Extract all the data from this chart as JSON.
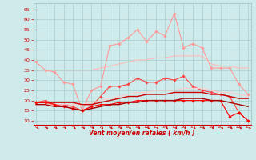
{
  "x": [
    0,
    1,
    2,
    3,
    4,
    5,
    6,
    7,
    8,
    9,
    10,
    11,
    12,
    13,
    14,
    15,
    16,
    17,
    18,
    19,
    20,
    21,
    22,
    23
  ],
  "series": [
    {
      "name": "rafales_max",
      "color": "#ff9999",
      "lw": 0.8,
      "marker": "D",
      "ms": 1.8,
      "values": [
        39,
        35,
        34,
        29,
        28,
        15,
        25,
        27,
        47,
        48,
        51,
        55,
        49,
        54,
        52,
        63,
        46,
        48,
        46,
        36,
        36,
        36,
        28,
        23
      ]
    },
    {
      "name": "rafales_moy",
      "color": "#ffbbbb",
      "lw": 0.8,
      "marker": null,
      "ms": 0,
      "values": [
        35,
        35,
        35,
        35,
        35,
        35,
        35,
        36,
        37,
        38,
        39,
        40,
        40,
        41,
        41,
        42,
        42,
        42,
        42,
        38,
        37,
        37,
        36,
        36
      ]
    },
    {
      "name": "vent_moyen_max",
      "color": "#ff4444",
      "lw": 0.8,
      "marker": "D",
      "ms": 1.8,
      "values": [
        19,
        20,
        18,
        18,
        17,
        15,
        17,
        22,
        27,
        27,
        28,
        31,
        29,
        29,
        31,
        30,
        32,
        27,
        25,
        24,
        23,
        22,
        14,
        10
      ]
    },
    {
      "name": "vent_moy_trend",
      "color": "#ffcccc",
      "lw": 0.8,
      "marker": null,
      "ms": 0,
      "values": [
        18,
        18,
        18,
        18,
        18,
        18,
        19,
        20,
        21,
        22,
        23,
        24,
        24,
        25,
        25,
        25,
        26,
        26,
        26,
        25,
        24,
        24,
        23,
        22
      ]
    },
    {
      "name": "vent_mean_upper",
      "color": "#cc0000",
      "lw": 1.0,
      "marker": null,
      "ms": 0,
      "values": [
        19,
        19,
        19,
        19,
        19,
        18,
        18,
        19,
        20,
        21,
        22,
        22,
        23,
        23,
        23,
        24,
        24,
        24,
        24,
        23,
        23,
        22,
        21,
        21
      ]
    },
    {
      "name": "vent_instant",
      "color": "#ff0000",
      "lw": 0.8,
      "marker": "D",
      "ms": 1.8,
      "values": [
        19,
        19,
        18,
        17,
        16,
        15,
        17,
        18,
        18,
        19,
        19,
        20,
        20,
        20,
        20,
        20,
        20,
        20,
        20,
        20,
        20,
        12,
        14,
        10
      ]
    },
    {
      "name": "vent_lower",
      "color": "#aa0000",
      "lw": 1.0,
      "marker": null,
      "ms": 0,
      "values": [
        18,
        18,
        17,
        17,
        16,
        15,
        16,
        17,
        18,
        18,
        19,
        19,
        20,
        20,
        20,
        20,
        21,
        21,
        21,
        20,
        20,
        19,
        18,
        17
      ]
    }
  ],
  "xlim": [
    -0.3,
    23.3
  ],
  "ylim": [
    8,
    68
  ],
  "yticks": [
    10,
    15,
    20,
    25,
    30,
    35,
    40,
    45,
    50,
    55,
    60,
    65
  ],
  "xticks": [
    0,
    1,
    2,
    3,
    4,
    5,
    6,
    7,
    8,
    9,
    10,
    11,
    12,
    13,
    14,
    15,
    16,
    17,
    18,
    19,
    20,
    21,
    22,
    23
  ],
  "xlabel": "Vent moyen/en rafales ( km/h )",
  "background_color": "#ceeaea",
  "grid_color": "#aacccc",
  "tick_color": "#cc0000",
  "label_color": "#cc0000",
  "spine_color": "#cc0000"
}
